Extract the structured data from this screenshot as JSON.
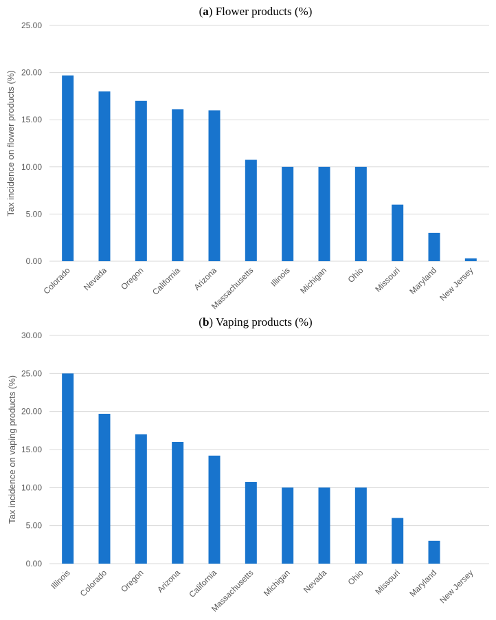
{
  "chart_data": [
    {
      "type": "bar",
      "title_prefix": "(",
      "title_bold": "a",
      "title_rest": ") Flower products (%)",
      "xlabel": "",
      "ylabel": "Tax incidence on flower products (%)",
      "ylim": [
        0,
        25
      ],
      "yticks": [
        "0.00",
        "5.00",
        "10.00",
        "15.00",
        "20.00",
        "25.00"
      ],
      "categories": [
        "Colorado",
        "Nevada",
        "Oregon",
        "California",
        "Arizona",
        "Massachusetts",
        "Illinois",
        "Michigan",
        "Ohio",
        "Missouri",
        "Maryland",
        "New Jersey"
      ],
      "values": [
        19.7,
        18.0,
        17.0,
        16.1,
        16.0,
        10.75,
        10.0,
        10.0,
        10.0,
        6.0,
        3.0,
        0.3
      ],
      "color": "#1874CD",
      "grid": true
    },
    {
      "type": "bar",
      "title_prefix": "(",
      "title_bold": "b",
      "title_rest": ") Vaping products (%)",
      "xlabel": "",
      "ylabel": "Tax incidence on vaping products (%)",
      "ylim": [
        0,
        30
      ],
      "yticks": [
        "0.00",
        "5.00",
        "10.00",
        "15.00",
        "20.00",
        "25.00",
        "30.00"
      ],
      "categories": [
        "Illinois",
        "Colorado",
        "Oregon",
        "Arizona",
        "California",
        "Massachusetts",
        "Michigan",
        "Nevada",
        "Ohio",
        "Missouri",
        "Maryland",
        "New Jersey"
      ],
      "values": [
        25.0,
        19.7,
        17.0,
        16.0,
        14.2,
        10.75,
        10.0,
        10.0,
        10.0,
        6.0,
        3.0,
        0.0
      ],
      "color": "#1874CD",
      "grid": true
    }
  ]
}
